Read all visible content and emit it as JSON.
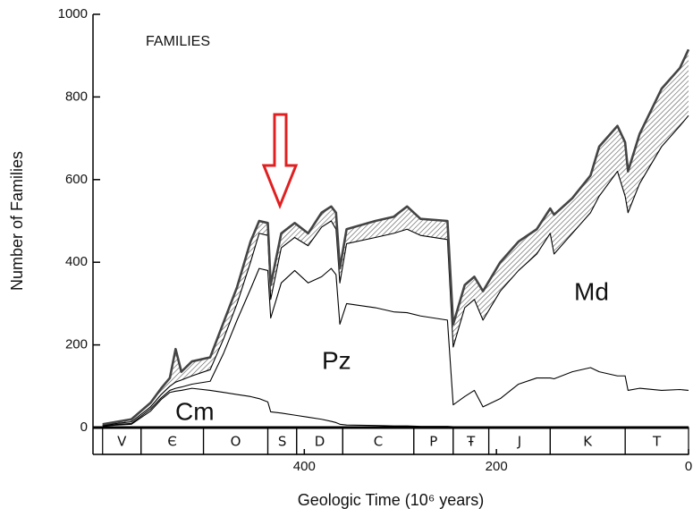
{
  "chart_data": {
    "type": "stacked_area",
    "annotation": "FAMILIES",
    "ylabel": "Number of Families",
    "xlabel": "Geologic Time (10⁶ years)",
    "xlim": [
      620,
      0
    ],
    "xticks": [
      400,
      200,
      0
    ],
    "ylim": [
      0,
      1000
    ],
    "yticks": [
      0,
      200,
      400,
      600,
      800,
      1000
    ],
    "x": [
      610,
      580,
      560,
      549,
      540,
      534,
      528,
      517,
      498,
      484,
      470,
      456,
      447,
      438,
      435,
      424,
      410,
      396,
      382,
      372,
      367,
      363,
      356,
      326,
      307,
      293,
      279,
      251,
      245,
      233,
      223,
      214,
      196,
      177,
      158,
      144,
      140,
      121,
      102,
      93,
      74,
      66,
      63,
      51,
      28,
      9,
      0
    ],
    "series": [
      {
        "name": "Cm",
        "color": "#000000",
        "values": [
          4,
          8,
          40,
          68,
          85,
          88,
          90,
          95,
          90,
          85,
          80,
          75,
          70,
          62,
          38,
          35,
          30,
          25,
          20,
          15,
          12,
          8,
          6,
          5,
          4,
          4,
          3,
          3,
          2,
          2,
          2,
          1,
          1,
          1,
          1,
          1,
          1,
          1,
          1,
          1,
          1,
          1,
          1,
          1,
          1,
          1,
          1
        ]
      },
      {
        "name": "Pz",
        "color": "#000000",
        "values": [
          1,
          2,
          5,
          4,
          5,
          7,
          8,
          10,
          22,
          95,
          180,
          260,
          315,
          318,
          227,
          315,
          350,
          325,
          345,
          370,
          358,
          242,
          294,
          285,
          276,
          274,
          267,
          257,
          53,
          73,
          88,
          49,
          69,
          104,
          119,
          119,
          117,
          134,
          144,
          134,
          124,
          124,
          89,
          94,
          89,
          91,
          89
        ]
      },
      {
        "name": "Md",
        "color": "#000000",
        "values": [
          1,
          4,
          5,
          8,
          10,
          15,
          17,
          20,
          28,
          35,
          40,
          65,
          85,
          85,
          45,
          85,
          80,
          90,
          120,
          115,
          110,
          100,
          145,
          170,
          190,
          202,
          195,
          195,
          140,
          215,
          220,
          210,
          260,
          275,
          300,
          350,
          302,
          335,
          375,
          425,
          495,
          435,
          430,
          495,
          590,
          638,
          665
        ]
      },
      {
        "color": "#444444",
        "values": [
          2,
          6,
          10,
          15,
          20,
          80,
          20,
          35,
          30,
          40,
          40,
          50,
          30,
          30,
          35,
          35,
          35,
          30,
          35,
          35,
          40,
          35,
          35,
          40,
          40,
          55,
          40,
          45,
          55,
          55,
          55,
          70,
          70,
          70,
          60,
          60,
          95,
          85,
          90,
          120,
          110,
          130,
          100,
          120,
          140,
          140,
          160
        ]
      }
    ],
    "periods": [
      {
        "label": "V",
        "start": 610,
        "end": 570
      },
      {
        "label": "Є",
        "start": 570,
        "end": 505
      },
      {
        "label": "O",
        "start": 505,
        "end": 438
      },
      {
        "label": "S",
        "start": 438,
        "end": 408
      },
      {
        "label": "D",
        "start": 408,
        "end": 360
      },
      {
        "label": "C",
        "start": 360,
        "end": 286
      },
      {
        "label": "P",
        "start": 286,
        "end": 245
      },
      {
        "label": "Ŧ",
        "start": 245,
        "end": 208
      },
      {
        "label": "J",
        "start": 208,
        "end": 144
      },
      {
        "label": "K",
        "start": 144,
        "end": 66
      },
      {
        "label": "T",
        "start": 66,
        "end": 0
      }
    ]
  }
}
